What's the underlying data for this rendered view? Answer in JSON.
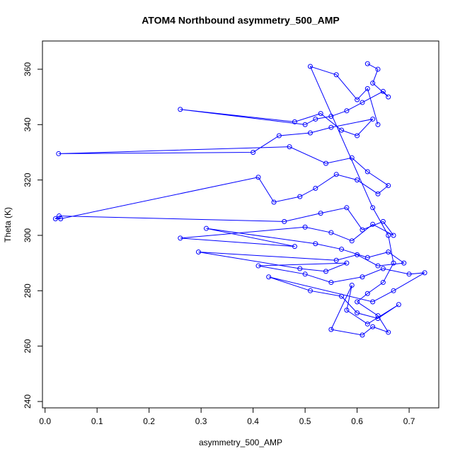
{
  "chart_data": {
    "type": "line",
    "title": "ATOM4 Northbound asymmetry_500_AMP",
    "x_label": "asymmetry_500_AMP",
    "y_label": "Theta (K)",
    "color": "#0000ff",
    "x": [
      0.62,
      0.64,
      0.63,
      0.66,
      0.65,
      0.61,
      0.58,
      0.55,
      0.52,
      0.5,
      0.26,
      0.48,
      0.53,
      0.57,
      0.6,
      0.63,
      0.55,
      0.51,
      0.45,
      0.4,
      0.026,
      0.47,
      0.54,
      0.59,
      0.62,
      0.66,
      0.64,
      0.6,
      0.56,
      0.52,
      0.49,
      0.44,
      0.41,
      0.03,
      0.02,
      0.027,
      0.46,
      0.53,
      0.58,
      0.61,
      0.65,
      0.67,
      0.63,
      0.59,
      0.55,
      0.5,
      0.26,
      0.48,
      0.31,
      0.52,
      0.57,
      0.62,
      0.66,
      0.69,
      0.64,
      0.6,
      0.56,
      0.295,
      0.49,
      0.54,
      0.58,
      0.41,
      0.5,
      0.55,
      0.61,
      0.65,
      0.7,
      0.73,
      0.67,
      0.63,
      0.43,
      0.51,
      0.57,
      0.6,
      0.64,
      0.68,
      0.62,
      0.58,
      0.59,
      0.55,
      0.61,
      0.63,
      0.66,
      0.64,
      0.6,
      0.62,
      0.65,
      0.67,
      0.66,
      0.63,
      0.51,
      0.56,
      0.6,
      0.62,
      0.64
    ],
    "values": [
      362,
      360,
      355,
      350,
      352,
      348,
      345,
      343,
      342,
      340,
      345.5,
      341,
      344,
      338,
      336,
      342,
      339,
      337,
      336,
      330,
      329.5,
      332,
      326,
      328,
      323,
      318,
      315,
      320,
      322,
      317,
      314,
      312,
      321,
      306,
      306,
      307,
      305,
      308,
      310,
      302,
      305,
      300,
      304,
      298,
      301,
      303,
      299,
      296,
      302.5,
      297,
      295,
      292,
      294,
      290,
      289,
      293,
      291,
      294,
      288,
      287,
      290,
      289,
      286,
      283,
      285,
      288,
      286,
      286.5,
      280,
      276,
      285,
      280,
      278,
      272,
      270,
      275,
      268,
      273,
      282,
      266,
      264,
      267,
      265,
      271,
      276,
      279,
      283,
      290,
      300,
      310,
      361,
      358,
      349,
      353,
      340
    ],
    "xlim": [
      -0.005,
      0.757
    ],
    "ylim": [
      237.7,
      370.2
    ],
    "xticks": [
      {
        "value": 0,
        "label": "0.0"
      },
      0.1,
      0.2,
      0.3,
      0.4,
      0.5,
      0.6,
      0.7
    ],
    "yticks": [
      240,
      260,
      280,
      300,
      320,
      340,
      360
    ]
  }
}
